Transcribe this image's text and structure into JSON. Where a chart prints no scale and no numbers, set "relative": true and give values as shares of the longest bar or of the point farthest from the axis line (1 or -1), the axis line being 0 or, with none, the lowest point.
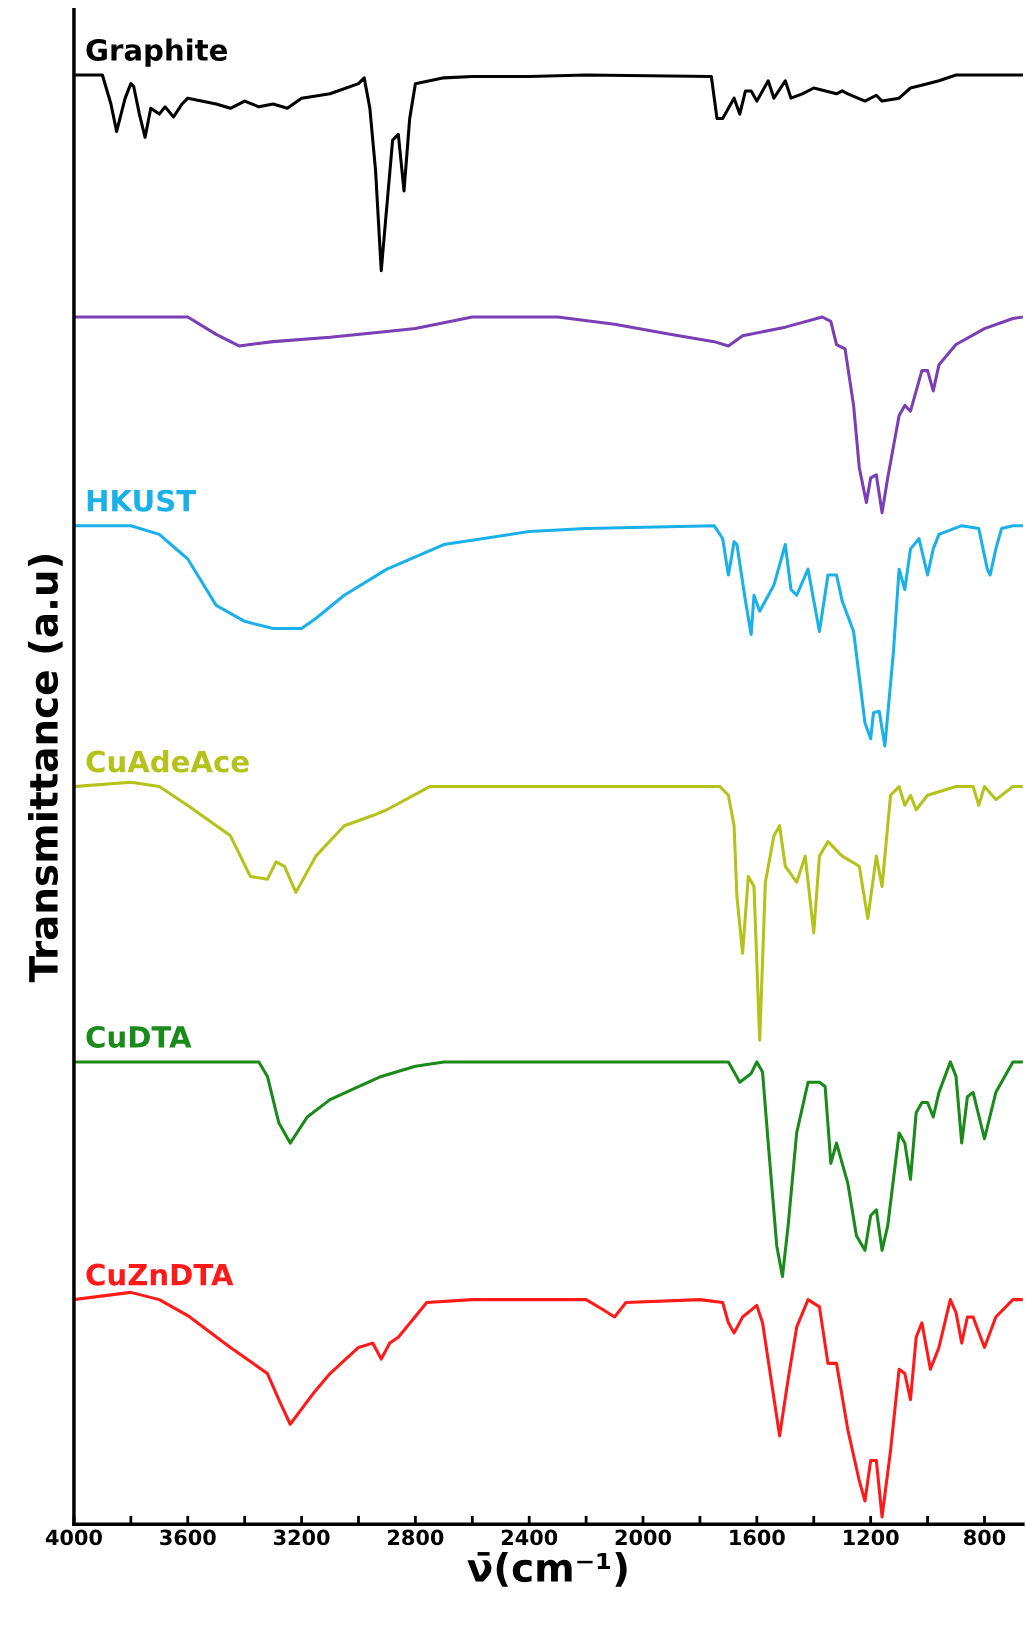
{
  "chart_data": {
    "type": "line",
    "relative": true,
    "xlabel": "ν̄(cm⁻¹)",
    "ylabel": "Transmittance (a.u)",
    "xlim": [
      4000,
      665
    ],
    "xticks": [
      4000,
      {
        "value": 3800,
        "label": null
      },
      3600,
      {
        "value": 3400,
        "label": null
      },
      3200,
      {
        "value": 3000,
        "label": null
      },
      2800,
      {
        "value": 2600,
        "label": null
      },
      2400,
      {
        "value": 2200,
        "label": null
      },
      2000,
      {
        "value": 1800,
        "label": null
      },
      1600,
      {
        "value": 1400,
        "label": null
      },
      1200,
      {
        "value": 1000,
        "label": null
      },
      800
    ],
    "grid": false,
    "legend": false,
    "marker": "none",
    "line_style": "solid",
    "tick_labels": "x",
    "series": [
      {
        "name": "Graphite",
        "color": "#000000",
        "x": [
          4000,
          3900,
          3870,
          3850,
          3820,
          3800,
          3790,
          3770,
          3750,
          3730,
          3700,
          3680,
          3650,
          3620,
          3600,
          3500,
          3450,
          3400,
          3350,
          3300,
          3250,
          3200,
          3100,
          3000,
          2980,
          2960,
          2940,
          2920,
          2905,
          2880,
          2860,
          2840,
          2820,
          2800,
          2700,
          2600,
          2400,
          2200,
          1760,
          1740,
          1720,
          1700,
          1680,
          1660,
          1640,
          1620,
          1600,
          1560,
          1540,
          1500,
          1480,
          1440,
          1400,
          1320,
          1300,
          1280,
          1220,
          1180,
          1160,
          1100,
          1060,
          1000,
          960,
          900,
          800,
          665
        ],
        "values": [
          1.0,
          1.0,
          0.98,
          0.961,
          0.984,
          0.994,
          0.992,
          0.973,
          0.957,
          0.977,
          0.973,
          0.978,
          0.971,
          0.98,
          0.984,
          0.98,
          0.977,
          0.982,
          0.978,
          0.98,
          0.977,
          0.984,
          0.987,
          0.994,
          0.998,
          0.977,
          0.934,
          0.865,
          0.899,
          0.955,
          0.959,
          0.92,
          0.97,
          0.994,
          0.998,
          0.999,
          0.999,
          1.0,
          0.999,
          0.97,
          0.97,
          0.977,
          0.984,
          0.973,
          0.989,
          0.989,
          0.982,
          0.996,
          0.984,
          0.996,
          0.984,
          0.987,
          0.991,
          0.987,
          0.989,
          0.987,
          0.982,
          0.986,
          0.982,
          0.984,
          0.991,
          0.994,
          0.996,
          1.0,
          1.0,
          1.0
        ]
      },
      {
        "color": "#7b3fb5",
        "x": [
          4000,
          3600,
          3500,
          3420,
          3300,
          3100,
          2900,
          2800,
          2600,
          2300,
          2100,
          1900,
          1750,
          1700,
          1650,
          1500,
          1370,
          1340,
          1320,
          1290,
          1260,
          1240,
          1215,
          1200,
          1180,
          1160,
          1140,
          1100,
          1080,
          1060,
          1020,
          1000,
          980,
          960,
          900,
          800,
          700,
          665
        ],
        "values": [
          0.833,
          0.833,
          0.821,
          0.813,
          0.816,
          0.819,
          0.823,
          0.825,
          0.833,
          0.833,
          0.828,
          0.821,
          0.816,
          0.813,
          0.82,
          0.826,
          0.833,
          0.83,
          0.814,
          0.811,
          0.772,
          0.729,
          0.705,
          0.722,
          0.724,
          0.698,
          0.722,
          0.765,
          0.772,
          0.768,
          0.796,
          0.796,
          0.782,
          0.8,
          0.814,
          0.825,
          0.832,
          0.833
        ]
      },
      {
        "name": "HKUST",
        "color": "#1ab0e8",
        "x": [
          4000,
          3800,
          3700,
          3600,
          3500,
          3400,
          3300,
          3200,
          3150,
          3050,
          2900,
          2700,
          2400,
          2200,
          1750,
          1720,
          1700,
          1690,
          1680,
          1670,
          1640,
          1620,
          1610,
          1590,
          1540,
          1500,
          1480,
          1460,
          1420,
          1380,
          1350,
          1320,
          1300,
          1260,
          1220,
          1200,
          1190,
          1170,
          1150,
          1120,
          1100,
          1080,
          1060,
          1030,
          1000,
          980,
          960,
          880,
          820,
          790,
          780,
          760,
          740,
          700,
          665
        ],
        "values": [
          0.689,
          0.689,
          0.683,
          0.666,
          0.634,
          0.623,
          0.618,
          0.618,
          0.625,
          0.641,
          0.659,
          0.676,
          0.685,
          0.687,
          0.689,
          0.68,
          0.655,
          0.666,
          0.678,
          0.676,
          0.637,
          0.614,
          0.641,
          0.63,
          0.648,
          0.676,
          0.645,
          0.641,
          0.659,
          0.616,
          0.655,
          0.655,
          0.637,
          0.616,
          0.553,
          0.542,
          0.56,
          0.561,
          0.537,
          0.602,
          0.659,
          0.645,
          0.673,
          0.68,
          0.655,
          0.673,
          0.683,
          0.689,
          0.687,
          0.659,
          0.655,
          0.673,
          0.687,
          0.689,
          0.689
        ]
      },
      {
        "name": "CuAdeAce",
        "color": "#b5c21a",
        "x": [
          4000,
          3800,
          3700,
          3600,
          3450,
          3380,
          3320,
          3290,
          3260,
          3220,
          3150,
          3050,
          2950,
          2900,
          2750,
          2400,
          1730,
          1700,
          1680,
          1670,
          1650,
          1630,
          1610,
          1590,
          1570,
          1540,
          1520,
          1500,
          1460,
          1430,
          1400,
          1380,
          1350,
          1300,
          1240,
          1210,
          1180,
          1160,
          1130,
          1100,
          1080,
          1060,
          1040,
          1000,
          900,
          840,
          820,
          800,
          760,
          700,
          665
        ],
        "values": [
          0.509,
          0.512,
          0.509,
          0.496,
          0.475,
          0.447,
          0.445,
          0.457,
          0.454,
          0.436,
          0.461,
          0.482,
          0.489,
          0.493,
          0.509,
          0.509,
          0.509,
          0.503,
          0.482,
          0.433,
          0.394,
          0.447,
          0.44,
          0.334,
          0.443,
          0.475,
          0.482,
          0.454,
          0.443,
          0.461,
          0.408,
          0.461,
          0.471,
          0.461,
          0.454,
          0.418,
          0.461,
          0.44,
          0.503,
          0.509,
          0.496,
          0.503,
          0.493,
          0.503,
          0.509,
          0.509,
          0.496,
          0.509,
          0.5,
          0.509,
          0.509
        ]
      },
      {
        "name": "CuDTA",
        "color": "#1a8a1a",
        "x": [
          4000,
          3350,
          3320,
          3280,
          3240,
          3180,
          3100,
          3000,
          2920,
          2800,
          2700,
          1700,
          1680,
          1660,
          1620,
          1600,
          1580,
          1560,
          1530,
          1510,
          1490,
          1460,
          1420,
          1380,
          1360,
          1340,
          1320,
          1280,
          1250,
          1220,
          1200,
          1180,
          1160,
          1140,
          1100,
          1080,
          1060,
          1040,
          1020,
          1000,
          980,
          960,
          920,
          900,
          880,
          860,
          840,
          800,
          760,
          700,
          665
        ],
        "values": [
          0.319,
          0.319,
          0.309,
          0.277,
          0.263,
          0.281,
          0.293,
          0.302,
          0.309,
          0.316,
          0.319,
          0.319,
          0.312,
          0.305,
          0.311,
          0.319,
          0.312,
          0.263,
          0.192,
          0.171,
          0.206,
          0.27,
          0.305,
          0.305,
          0.302,
          0.249,
          0.263,
          0.235,
          0.199,
          0.189,
          0.213,
          0.217,
          0.189,
          0.206,
          0.27,
          0.263,
          0.238,
          0.284,
          0.291,
          0.291,
          0.281,
          0.298,
          0.319,
          0.309,
          0.263,
          0.295,
          0.298,
          0.266,
          0.298,
          0.319,
          0.319
        ]
      },
      {
        "name": "CuZnDTA",
        "color": "#ff1a1a",
        "x": [
          4000,
          3800,
          3700,
          3600,
          3450,
          3320,
          3280,
          3240,
          3160,
          3100,
          3000,
          2950,
          2920,
          2890,
          2860,
          2760,
          2600,
          2200,
          2140,
          2100,
          2060,
          1800,
          1720,
          1700,
          1680,
          1650,
          1600,
          1580,
          1550,
          1520,
          1490,
          1460,
          1420,
          1380,
          1350,
          1320,
          1280,
          1240,
          1220,
          1200,
          1180,
          1160,
          1130,
          1100,
          1080,
          1060,
          1040,
          1020,
          990,
          960,
          920,
          900,
          880,
          860,
          840,
          800,
          760,
          700,
          665
        ],
        "values": [
          0.155,
          0.16,
          0.155,
          0.144,
          0.122,
          0.104,
          0.086,
          0.069,
          0.09,
          0.104,
          0.122,
          0.125,
          0.114,
          0.125,
          0.129,
          0.153,
          0.155,
          0.155,
          0.148,
          0.143,
          0.153,
          0.155,
          0.153,
          0.139,
          0.132,
          0.143,
          0.151,
          0.139,
          0.1,
          0.061,
          0.1,
          0.136,
          0.155,
          0.15,
          0.111,
          0.111,
          0.065,
          0.03,
          0.016,
          0.044,
          0.044,
          0.005,
          0.051,
          0.107,
          0.104,
          0.086,
          0.129,
          0.139,
          0.107,
          0.122,
          0.155,
          0.146,
          0.125,
          0.143,
          0.143,
          0.122,
          0.143,
          0.155,
          0.155
        ]
      }
    ]
  }
}
